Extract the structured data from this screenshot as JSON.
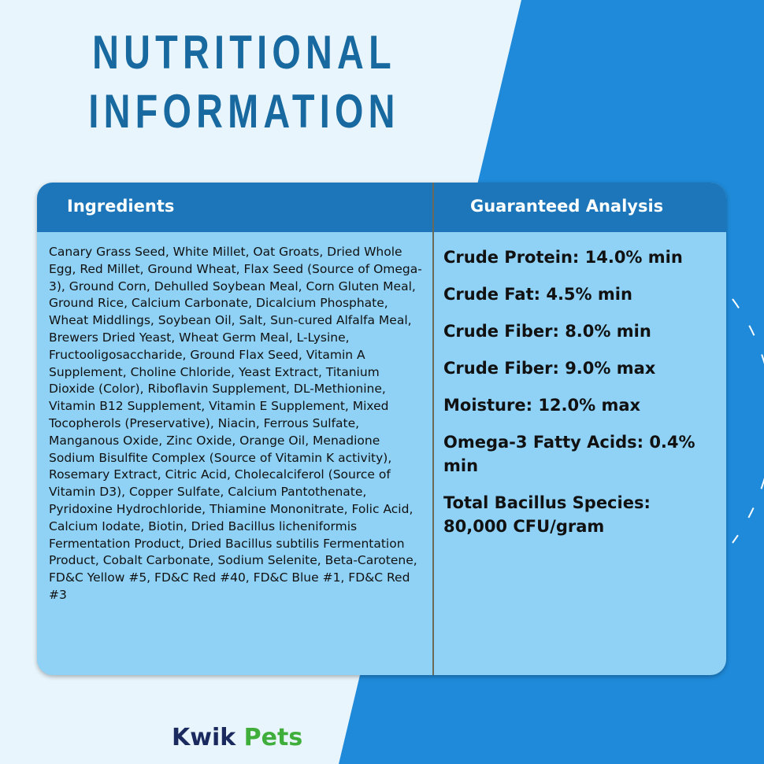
{
  "header": {
    "title": [
      "NUTRITIONAL",
      "INFORMATION"
    ]
  },
  "table": {
    "headers": [
      "Ingredients",
      "Guaranteed Analysis"
    ],
    "ingredients": "Canary Grass Seed, White Millet, Oat Groats, Dried Whole Egg, Red Millet, Ground Wheat, Flax Seed (Source of Omega-3), Ground Corn, Dehulled Soybean Meal, Corn Gluten Meal, Ground Rice, Calcium Carbonate, Dicalcium Phosphate, Wheat Middlings, Soybean Oil, Salt, Sun-cured Alfalfa Meal, Brewers Dried Yeast, Wheat Germ Meal, L-Lysine, Fructooligosaccharide, Ground Flax Seed, Vitamin A Supplement, Choline Chloride, Yeast Extract, Titanium Dioxide (Color), Riboflavin Supplement, DL-Methionine, Vitamin B12 Supplement, Vitamin E Supplement, Mixed Tocopherols (Preservative), Niacin, Ferrous Sulfate, Manganous Oxide, Zinc Oxide, Orange Oil, Menadione Sodium Bisulfite Complex (Source of Vitamin K activity), Rosemary Extract, Citric Acid, Cholecalciferol (Source of Vitamin D3), Copper Sulfate, Calcium Pantothenate, Pyridoxine Hydrochloride, Thiamine Mononitrate, Folic Acid, Calcium Iodate, Biotin, Dried Bacillus licheniformis Fermentation Product, Dried Bacillus subtilis Fermentation Product, Cobalt Carbonate, Sodium Selenite, Beta-Carotene, FD&C Yellow #5, FD&C Red #40, FD&C Blue #1, FD&C Red #3",
    "analysis": [
      "Crude Protein: 14.0% min",
      "Crude Fat: 4.5% min",
      "Crude Fiber: 8.0% min",
      "Crude Fiber: 9.0% max",
      "Moisture: 12.0% max",
      "Omega-3 Fatty Acids: 0.4% min",
      "Total Bacillus Species: 80,000 CFU/gram"
    ]
  },
  "brand": [
    "Kwik",
    "Pets"
  ]
}
